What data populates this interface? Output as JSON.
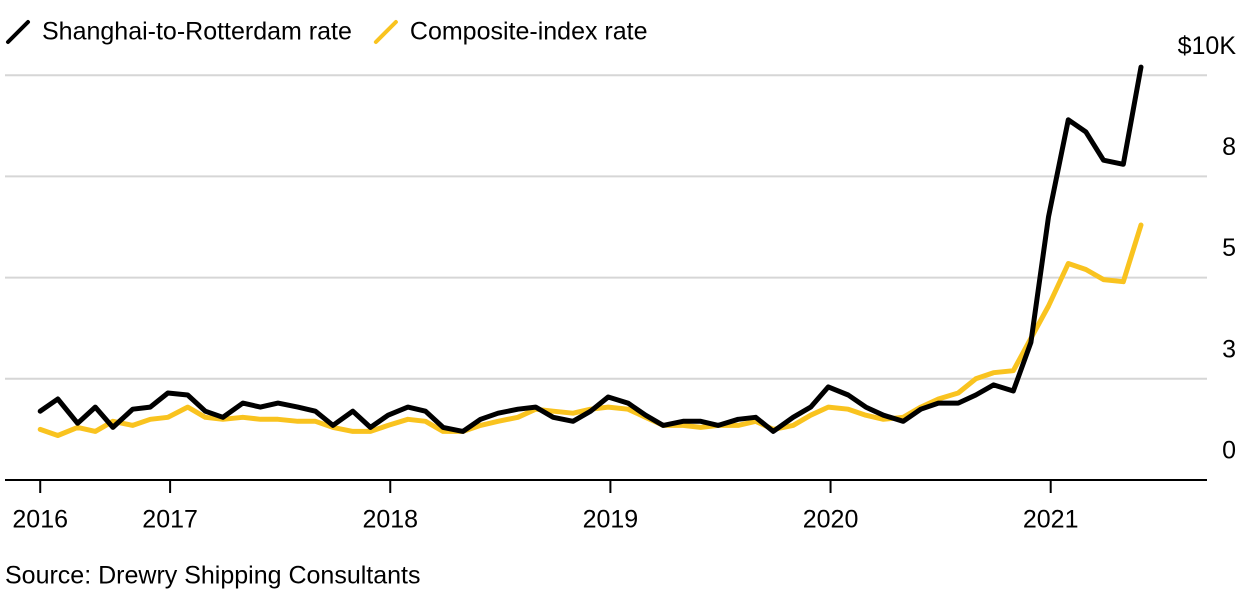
{
  "chart_data": {
    "type": "line",
    "source": "Source: Drewry Shipping Consultants",
    "x": [
      2016.41,
      2016.49,
      2016.58,
      2016.66,
      2016.74,
      2016.83,
      2016.91,
      2016.99,
      2017.08,
      2017.16,
      2017.24,
      2017.33,
      2017.41,
      2017.49,
      2017.58,
      2017.66,
      2017.74,
      2017.83,
      2017.91,
      2017.99,
      2018.08,
      2018.16,
      2018.24,
      2018.33,
      2018.41,
      2018.49,
      2018.58,
      2018.66,
      2018.74,
      2018.83,
      2018.91,
      2018.99,
      2019.08,
      2019.16,
      2019.24,
      2019.33,
      2019.41,
      2019.49,
      2019.58,
      2019.66,
      2019.74,
      2019.83,
      2019.91,
      2019.99,
      2020.08,
      2020.16,
      2020.24,
      2020.33,
      2020.41,
      2020.49,
      2020.58,
      2020.66,
      2020.74,
      2020.83,
      2020.91,
      2020.99,
      2021.08,
      2021.16,
      2021.24,
      2021.33,
      2021.41
    ],
    "series": [
      {
        "name": "Shanghai-to-Rotterdam rate",
        "color": "#000000",
        "values": [
          1.7,
          2.0,
          1.4,
          1.8,
          1.3,
          1.75,
          1.8,
          2.15,
          2.1,
          1.7,
          1.55,
          1.9,
          1.8,
          1.9,
          1.8,
          1.7,
          1.35,
          1.7,
          1.3,
          1.6,
          1.8,
          1.7,
          1.3,
          1.2,
          1.5,
          1.65,
          1.75,
          1.8,
          1.55,
          1.45,
          1.7,
          2.05,
          1.9,
          1.6,
          1.35,
          1.45,
          1.45,
          1.35,
          1.5,
          1.55,
          1.2,
          1.55,
          1.8,
          2.3,
          2.1,
          1.8,
          1.6,
          1.45,
          1.75,
          1.9,
          1.9,
          2.1,
          2.35,
          2.2,
          3.4,
          6.5,
          8.9,
          8.6,
          7.9,
          7.8,
          10.2
        ]
      },
      {
        "name": "Composite-index rate",
        "color": "#f9c31f",
        "values": [
          1.25,
          1.1,
          1.3,
          1.2,
          1.45,
          1.35,
          1.5,
          1.55,
          1.8,
          1.55,
          1.5,
          1.55,
          1.5,
          1.5,
          1.45,
          1.45,
          1.3,
          1.2,
          1.2,
          1.35,
          1.5,
          1.45,
          1.2,
          1.2,
          1.35,
          1.45,
          1.55,
          1.75,
          1.7,
          1.65,
          1.75,
          1.8,
          1.75,
          1.55,
          1.35,
          1.35,
          1.3,
          1.35,
          1.35,
          1.45,
          1.25,
          1.35,
          1.6,
          1.8,
          1.75,
          1.6,
          1.5,
          1.55,
          1.8,
          2.0,
          2.15,
          2.5,
          2.65,
          2.7,
          3.5,
          4.3,
          5.35,
          5.2,
          4.95,
          4.9,
          6.3
        ]
      }
    ],
    "xlim": [
      2016.25,
      2021.71
    ],
    "xticks": [
      {
        "value": 2016.41,
        "label": "2016"
      },
      2017,
      2018,
      2019,
      2020,
      2021
    ],
    "ylim": [
      0,
      10.5
    ],
    "yticks": [
      0,
      {
        "value": 2.5,
        "label": "3"
      },
      5,
      {
        "value": 7.5,
        "label": "8"
      },
      {
        "value": 10,
        "label": "$10K"
      }
    ],
    "grid": true
  }
}
